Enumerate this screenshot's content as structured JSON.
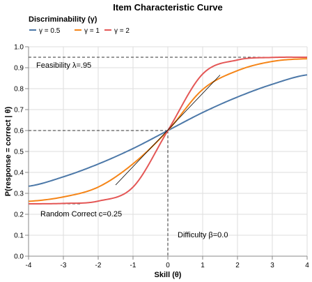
{
  "chart_data": {
    "type": "line",
    "title": "Item Characteristic Curve",
    "xlabel": "Skill (θ)",
    "ylabel": "P(response = correct | θ)",
    "xlim": [
      -4,
      4
    ],
    "ylim": [
      0,
      1
    ],
    "x_ticks": [
      "-4",
      "-3",
      "-2",
      "-1",
      "0",
      "1",
      "2",
      "3",
      "4"
    ],
    "y_ticks": [
      "0.0",
      "0.1",
      "0.2",
      "0.3",
      "0.4",
      "0.5",
      "0.6",
      "0.7",
      "0.8",
      "0.9",
      "1.0"
    ],
    "grid": true,
    "legend": {
      "title": "Discriminability (γ)",
      "placement": "top-left",
      "entries": [
        "γ = 0.5",
        "γ = 1",
        "γ = 2"
      ]
    },
    "params": {
      "feasibility": 0.95,
      "random_correct": 0.25,
      "difficulty": 0.0
    },
    "series": [
      {
        "name": "γ = 0.5",
        "gamma": 0.5,
        "color": "#4c78a8",
        "x": [
          -4,
          -3,
          -2,
          -1,
          0,
          1,
          2,
          3,
          4
        ],
        "y": [
          0.334,
          0.379,
          0.44,
          0.514,
          0.6,
          0.686,
          0.76,
          0.821,
          0.866
        ]
      },
      {
        "name": "γ = 1",
        "gamma": 1,
        "color": "#f58518",
        "x": [
          -4,
          -3,
          -2,
          -1,
          0,
          1,
          2,
          3,
          4
        ],
        "y": [
          0.262,
          0.283,
          0.33,
          0.441,
          0.6,
          0.796,
          0.886,
          0.93,
          0.943
        ]
      },
      {
        "name": "γ = 2",
        "gamma": 2,
        "color": "#e45756",
        "x": [
          -4,
          -3,
          -2,
          -1,
          0,
          1,
          2,
          3,
          4
        ],
        "y": [
          0.25,
          0.252,
          0.263,
          0.33,
          0.6,
          0.87,
          0.937,
          0.949,
          0.95
        ]
      }
    ],
    "annotations": {
      "feasibility": "Feasibility λ=.95",
      "random": "Random Correct c=0.25",
      "difficulty": "Difficulty β=0.0"
    }
  }
}
